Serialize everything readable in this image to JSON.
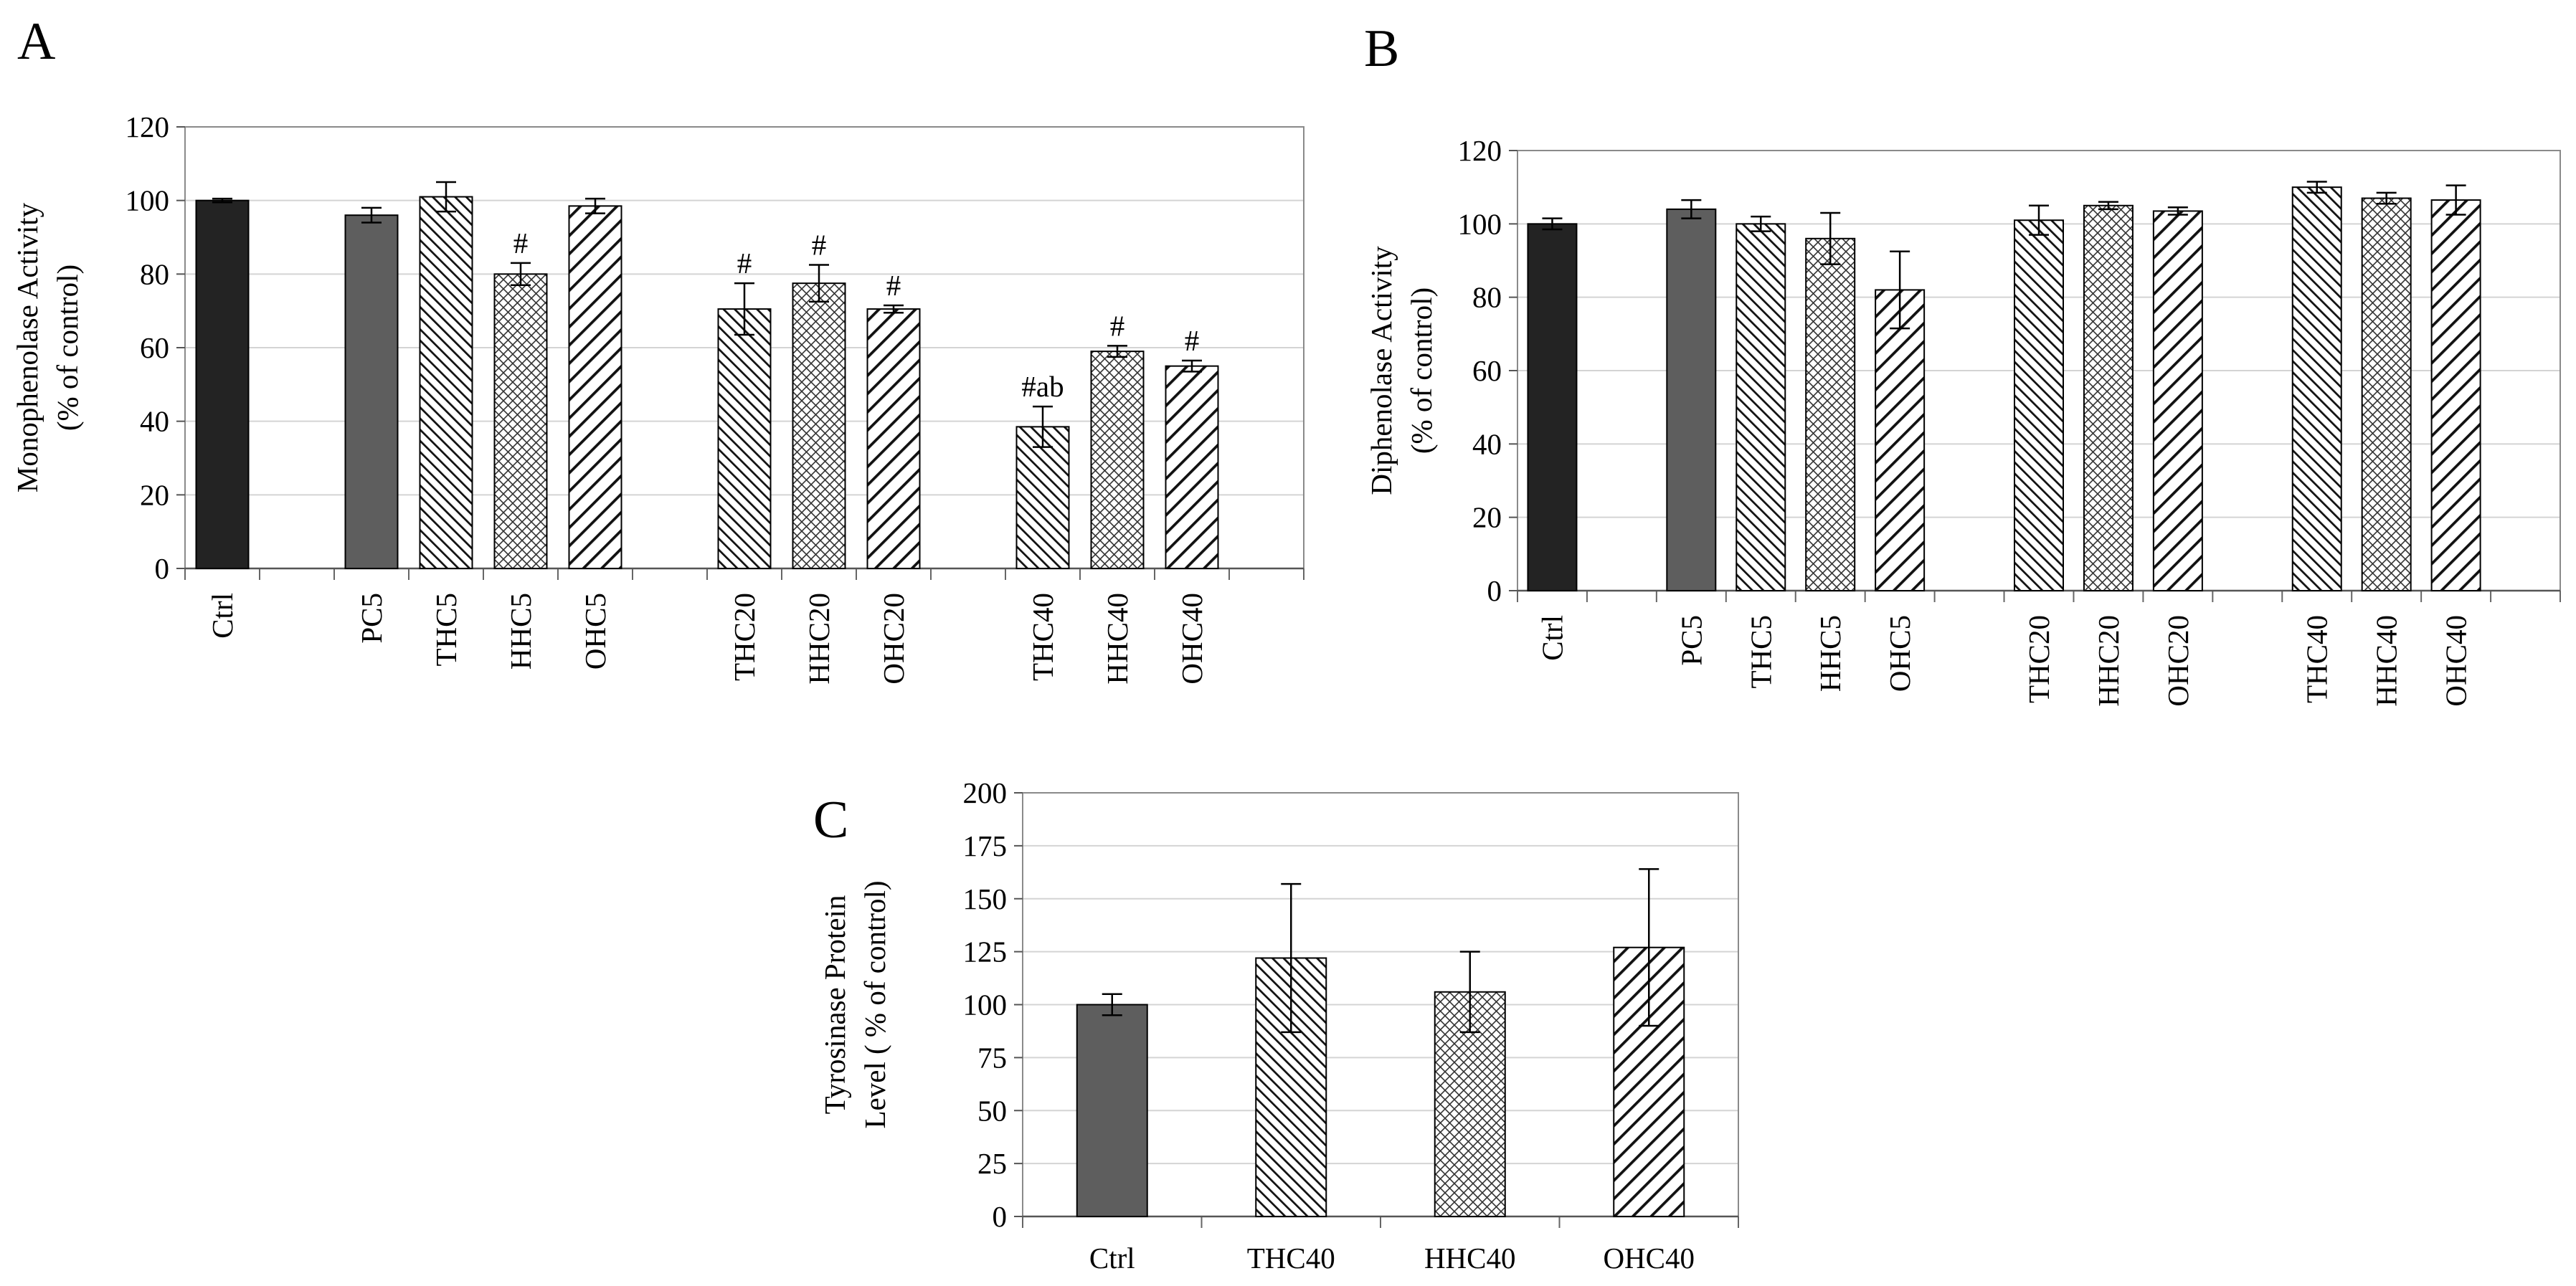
{
  "figure": {
    "panels": [
      {
        "id": "A",
        "label": "A"
      },
      {
        "id": "B",
        "label": "B"
      },
      {
        "id": "C",
        "label": "C"
      }
    ]
  },
  "chart_data": [
    {
      "panel": "A",
      "type": "bar",
      "ylabel_lines": [
        "Monophenolase Activity",
        "(% of control)"
      ],
      "ylim": [
        0,
        120
      ],
      "yticks": [
        0,
        20,
        40,
        60,
        80,
        100,
        120
      ],
      "gridlines": true,
      "slots": 15,
      "bars": [
        {
          "category": "Ctrl",
          "slot": 0,
          "value": 100,
          "error": 0.5,
          "pattern": "solid-dark",
          "annotation": ""
        },
        {
          "category": "PC5",
          "slot": 2,
          "value": 96,
          "error": 2,
          "pattern": "solid-gray",
          "annotation": ""
        },
        {
          "category": "THC5",
          "slot": 3,
          "value": 101,
          "error": 4,
          "pattern": "diag-dense",
          "annotation": ""
        },
        {
          "category": "HHC5",
          "slot": 4,
          "value": 80,
          "error": 3,
          "pattern": "crosshatch",
          "annotation": "#"
        },
        {
          "category": "OHC5",
          "slot": 5,
          "value": 98.5,
          "error": 2,
          "pattern": "diag-wide",
          "annotation": ""
        },
        {
          "category": "THC20",
          "slot": 7,
          "value": 70.5,
          "error": 7,
          "pattern": "diag-dense",
          "annotation": "#"
        },
        {
          "category": "HHC20",
          "slot": 8,
          "value": 77.5,
          "error": 5,
          "pattern": "crosshatch",
          "annotation": "#"
        },
        {
          "category": "OHC20",
          "slot": 9,
          "value": 70.5,
          "error": 1,
          "pattern": "diag-wide",
          "annotation": "#"
        },
        {
          "category": "THC40",
          "slot": 11,
          "value": 38.5,
          "error": 5.5,
          "pattern": "diag-dense",
          "annotation": "#ab"
        },
        {
          "category": "HHC40",
          "slot": 12,
          "value": 59,
          "error": 1.5,
          "pattern": "crosshatch",
          "annotation": "#"
        },
        {
          "category": "OHC40",
          "slot": 13,
          "value": 55,
          "error": 1.5,
          "pattern": "diag-wide",
          "annotation": "#"
        }
      ]
    },
    {
      "panel": "B",
      "type": "bar",
      "ylabel_lines": [
        "Diphenolase Activity",
        "(% of control)"
      ],
      "ylim": [
        0,
        120
      ],
      "yticks": [
        0,
        20,
        40,
        60,
        80,
        100,
        120
      ],
      "gridlines": true,
      "slots": 15,
      "bars": [
        {
          "category": "Ctrl",
          "slot": 0,
          "value": 100,
          "error": 1.5,
          "pattern": "solid-dark",
          "annotation": ""
        },
        {
          "category": "PC5",
          "slot": 2,
          "value": 104,
          "error": 2.5,
          "pattern": "solid-gray",
          "annotation": ""
        },
        {
          "category": "THC5",
          "slot": 3,
          "value": 100,
          "error": 2,
          "pattern": "diag-dense",
          "annotation": ""
        },
        {
          "category": "HHC5",
          "slot": 4,
          "value": 96,
          "error": 7,
          "pattern": "crosshatch",
          "annotation": ""
        },
        {
          "category": "OHC5",
          "slot": 5,
          "value": 82,
          "error": 10.5,
          "pattern": "diag-wide",
          "annotation": ""
        },
        {
          "category": "THC20",
          "slot": 7,
          "value": 101,
          "error": 4,
          "pattern": "diag-dense",
          "annotation": ""
        },
        {
          "category": "HHC20",
          "slot": 8,
          "value": 105,
          "error": 1,
          "pattern": "crosshatch",
          "annotation": ""
        },
        {
          "category": "OHC20",
          "slot": 9,
          "value": 103.5,
          "error": 1,
          "pattern": "diag-wide",
          "annotation": ""
        },
        {
          "category": "THC40",
          "slot": 11,
          "value": 110,
          "error": 1.5,
          "pattern": "diag-dense",
          "annotation": ""
        },
        {
          "category": "HHC40",
          "slot": 12,
          "value": 107,
          "error": 1.5,
          "pattern": "crosshatch",
          "annotation": ""
        },
        {
          "category": "OHC40",
          "slot": 13,
          "value": 106.5,
          "error": 4,
          "pattern": "diag-wide",
          "annotation": ""
        }
      ]
    },
    {
      "panel": "C",
      "type": "bar",
      "ylabel_lines": [
        "Tyrosinase Protein",
        "Level ( % of control)"
      ],
      "ylim": [
        0,
        200
      ],
      "yticks": [
        0,
        25,
        50,
        75,
        100,
        125,
        150,
        175,
        200
      ],
      "gridlines": true,
      "slots": 4,
      "bars": [
        {
          "category": "Ctrl",
          "slot": 0,
          "value": 100,
          "error": 5,
          "pattern": "solid-gray",
          "annotation": ""
        },
        {
          "category": "THC40",
          "slot": 1,
          "value": 122,
          "error": 35,
          "pattern": "diag-dense",
          "annotation": ""
        },
        {
          "category": "HHC40",
          "slot": 2,
          "value": 106,
          "error": 19,
          "pattern": "crosshatch",
          "annotation": ""
        },
        {
          "category": "OHC40",
          "slot": 3,
          "value": 127,
          "error": 37,
          "pattern": "diag-wide",
          "annotation": ""
        }
      ]
    }
  ]
}
